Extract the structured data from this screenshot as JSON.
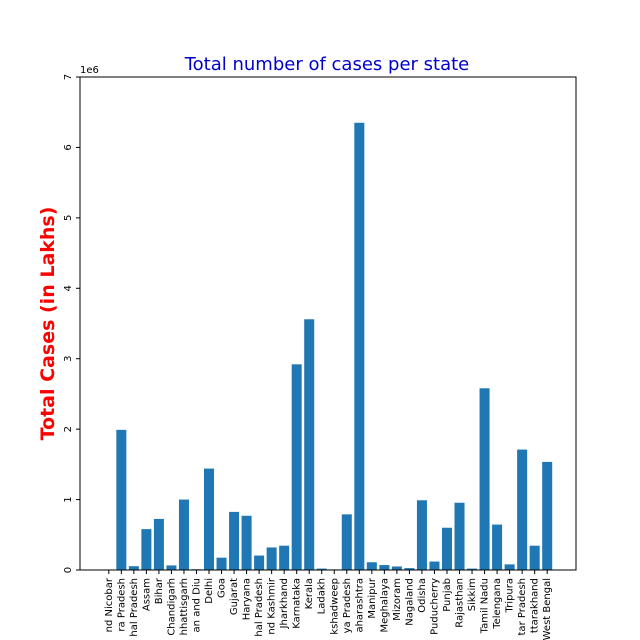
{
  "chart_data": {
    "type": "bar",
    "title": "Total number of cases per state",
    "xlabel": "",
    "ylabel": "Total Cases (in Lakhs)",
    "y_offset_label": "1e6",
    "ylim": [
      0,
      7
    ],
    "y_ticks": [
      "0",
      "1",
      "2",
      "3",
      "4",
      "5",
      "6",
      "7"
    ],
    "bar_color": "#1f77b4",
    "title_color": "#0000cc",
    "ylabel_color": "#ff0000",
    "grid": false,
    "categories": [
      "nd Nicobar",
      "ra Pradesh",
      "hal Pradesh",
      "Assam",
      "Bihar",
      "Chandigarh",
      "hhattisgarh",
      "an and Diu",
      "Delhi",
      "Goa",
      "Gujarat",
      "Haryana",
      "hal Pradesh",
      "nd Kashmir",
      "Jharkhand",
      "Karnataka",
      "Kerala",
      "Ladakh",
      "kshadweep",
      "ya Pradesh",
      "aharashtra",
      "Manipur",
      "Meghalaya",
      "Mizoram",
      "Nagaland",
      "Odisha",
      "Puducherry",
      "Punjab",
      "Rajasthan",
      "Sikkim",
      "Tamil Nadu",
      "Telengana",
      "Tripura",
      "tar Pradesh",
      "ttarakhand",
      "West Bengal"
    ],
    "values": [
      0.0076,
      1.99,
      0.054,
      0.58,
      0.725,
      0.065,
      1.0,
      0.011,
      1.44,
      0.175,
      0.825,
      0.77,
      0.205,
      0.32,
      0.345,
      2.92,
      3.56,
      0.02,
      0.0087,
      0.79,
      6.35,
      0.11,
      0.07,
      0.05,
      0.027,
      0.99,
      0.12,
      0.6,
      0.955,
      0.02,
      2.58,
      0.645,
      0.08,
      1.71,
      0.345,
      1.535
    ],
    "value_scale": "1e6"
  }
}
